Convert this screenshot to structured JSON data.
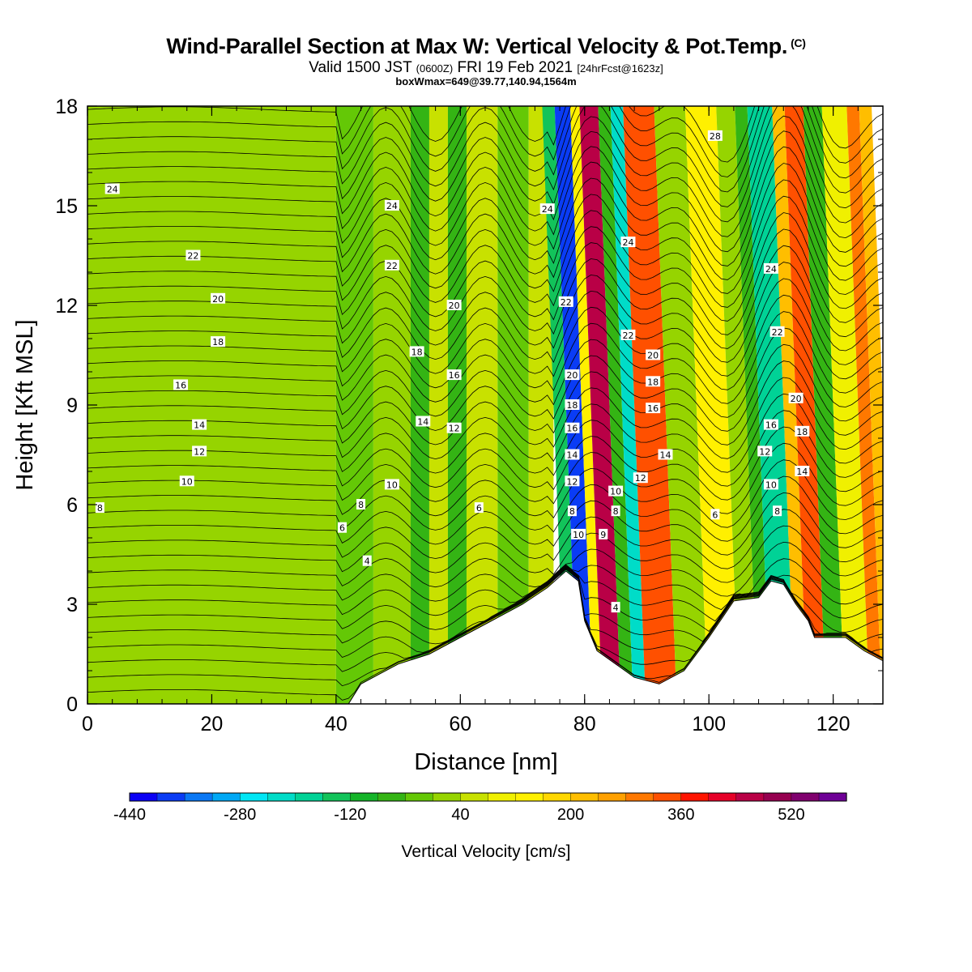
{
  "header": {
    "title": "Wind-Parallel Section at Max W: Vertical Velocity & Pot.Temp.",
    "copyright": "(C)",
    "valid_prefix": "Valid 1500 JST",
    "zulu": "(0600Z)",
    "valid_date": "FRI 19 Feb 2021",
    "forecast": "[24hrFcst@1623z]",
    "box_info": "boxWmax=649@39.77,140.94,1564m"
  },
  "chart_data": {
    "type": "contour",
    "xlabel": "Distance [nm]",
    "ylabel": "Height [Kft MSL]",
    "xlim": [
      0,
      128
    ],
    "ylim": [
      0,
      18
    ],
    "x_ticks": [
      0,
      20,
      40,
      60,
      80,
      100,
      120
    ],
    "y_ticks": [
      0,
      3,
      6,
      9,
      12,
      15,
      18
    ],
    "colorbar": {
      "title": "Vertical Velocity [cm/s]",
      "tick_labels": [
        "-440",
        "-280",
        "-120",
        "40",
        "200",
        "360",
        "520"
      ],
      "tick_values": [
        -440,
        -280,
        -120,
        40,
        200,
        360,
        520
      ],
      "min": -440,
      "max": 600,
      "step": 40,
      "colors": [
        "#0a00f5",
        "#0a3cf5",
        "#0a78f5",
        "#00a8f5",
        "#00e6f5",
        "#00dcc8",
        "#00d296",
        "#12c35a",
        "#14b428",
        "#34b414",
        "#64c806",
        "#96d400",
        "#c8e100",
        "#f0f000",
        "#fff000",
        "#ffd700",
        "#ffbe00",
        "#ffa000",
        "#ff7800",
        "#ff5000",
        "#ff1400",
        "#e60028",
        "#b90046",
        "#960050",
        "#80006e",
        "#6e0096"
      ]
    },
    "vertical_velocity_bands": [
      {
        "x_start": 0,
        "x_end": 40,
        "value": 0
      },
      {
        "x_start": 40,
        "x_end": 46,
        "value": -40
      },
      {
        "x_start": 46,
        "x_end": 52,
        "value": 0
      },
      {
        "x_start": 52,
        "x_end": 55,
        "value": -80
      },
      {
        "x_start": 55,
        "x_end": 58,
        "value": 40
      },
      {
        "x_start": 58,
        "x_end": 61,
        "value": -80
      },
      {
        "x_start": 61,
        "x_end": 66,
        "value": 40
      },
      {
        "x_start": 66,
        "x_end": 71,
        "value": -40
      },
      {
        "x_start": 71,
        "x_end": 75,
        "value": 40
      },
      {
        "x_start": 75,
        "x_end": 77,
        "value": -160
      },
      {
        "x_start": 77,
        "x_end": 79.5,
        "value": -400
      },
      {
        "x_start": 79.5,
        "x_end": 81,
        "value": 120
      },
      {
        "x_start": 81,
        "x_end": 84,
        "value": 440
      },
      {
        "x_start": 84,
        "x_end": 86,
        "value": -80
      },
      {
        "x_start": 86,
        "x_end": 88,
        "value": -240
      },
      {
        "x_start": 88,
        "x_end": 93,
        "value": 320
      },
      {
        "x_start": 93,
        "x_end": 98,
        "value": 0
      },
      {
        "x_start": 98,
        "x_end": 103,
        "value": 120
      },
      {
        "x_start": 103,
        "x_end": 106,
        "value": 0
      },
      {
        "x_start": 106,
        "x_end": 108,
        "value": -80
      },
      {
        "x_start": 108,
        "x_end": 112,
        "value": -200
      },
      {
        "x_start": 112,
        "x_end": 114,
        "value": 200
      },
      {
        "x_start": 114,
        "x_end": 117,
        "value": 320
      },
      {
        "x_start": 117,
        "x_end": 120,
        "value": -80
      },
      {
        "x_start": 120,
        "x_end": 124,
        "value": 80
      },
      {
        "x_start": 124,
        "x_end": 126,
        "value": 280
      },
      {
        "x_start": 126,
        "x_end": 128,
        "value": 200
      }
    ],
    "terrain_kft": [
      {
        "x": 0,
        "y": 0
      },
      {
        "x": 42,
        "y": 0
      },
      {
        "x": 44,
        "y": 0.6
      },
      {
        "x": 47,
        "y": 0.9
      },
      {
        "x": 50,
        "y": 1.2
      },
      {
        "x": 55,
        "y": 1.5
      },
      {
        "x": 60,
        "y": 2.0
      },
      {
        "x": 65,
        "y": 2.5
      },
      {
        "x": 70,
        "y": 3.0
      },
      {
        "x": 74,
        "y": 3.5
      },
      {
        "x": 77,
        "y": 4.0
      },
      {
        "x": 79,
        "y": 3.7
      },
      {
        "x": 80,
        "y": 2.5
      },
      {
        "x": 82,
        "y": 1.6
      },
      {
        "x": 85,
        "y": 1.2
      },
      {
        "x": 88,
        "y": 0.8
      },
      {
        "x": 92,
        "y": 0.6
      },
      {
        "x": 96,
        "y": 1.0
      },
      {
        "x": 100,
        "y": 2.0
      },
      {
        "x": 104,
        "y": 3.1
      },
      {
        "x": 108,
        "y": 3.2
      },
      {
        "x": 110,
        "y": 3.7
      },
      {
        "x": 112,
        "y": 3.6
      },
      {
        "x": 114,
        "y": 3.0
      },
      {
        "x": 116,
        "y": 2.5
      },
      {
        "x": 117,
        "y": 2.0
      },
      {
        "x": 122,
        "y": 2.0
      },
      {
        "x": 125,
        "y": 1.6
      },
      {
        "x": 128,
        "y": 1.3
      }
    ],
    "theta_levels": [
      4,
      6,
      8,
      10,
      12,
      14,
      16,
      18,
      20,
      22,
      24,
      26,
      28
    ],
    "theta_labels": [
      {
        "text": "24",
        "x": 4,
        "y": 15.5
      },
      {
        "text": "22",
        "x": 17,
        "y": 13.5
      },
      {
        "text": "20",
        "x": 21,
        "y": 12.2
      },
      {
        "text": "18",
        "x": 21,
        "y": 10.9
      },
      {
        "text": "16",
        "x": 15,
        "y": 9.6
      },
      {
        "text": "14",
        "x": 18,
        "y": 8.4
      },
      {
        "text": "12",
        "x": 18,
        "y": 7.6
      },
      {
        "text": "10",
        "x": 16,
        "y": 6.7
      },
      {
        "text": "8",
        "x": 2,
        "y": 5.9
      },
      {
        "text": "24",
        "x": 49,
        "y": 15.0
      },
      {
        "text": "22",
        "x": 49,
        "y": 13.2
      },
      {
        "text": "20",
        "x": 59,
        "y": 12.0
      },
      {
        "text": "18",
        "x": 53,
        "y": 10.6
      },
      {
        "text": "16",
        "x": 59,
        "y": 9.9
      },
      {
        "text": "14",
        "x": 54,
        "y": 8.5
      },
      {
        "text": "12",
        "x": 59,
        "y": 8.3
      },
      {
        "text": "10",
        "x": 49,
        "y": 6.6
      },
      {
        "text": "8",
        "x": 44,
        "y": 6.0
      },
      {
        "text": "6",
        "x": 41,
        "y": 5.3
      },
      {
        "text": "6",
        "x": 63,
        "y": 5.9
      },
      {
        "text": "4",
        "x": 45,
        "y": 4.3
      },
      {
        "text": "24",
        "x": 74,
        "y": 14.9
      },
      {
        "text": "22",
        "x": 77,
        "y": 12.1
      },
      {
        "text": "20",
        "x": 78,
        "y": 9.9
      },
      {
        "text": "18",
        "x": 78,
        "y": 9.0
      },
      {
        "text": "16",
        "x": 78,
        "y": 8.3
      },
      {
        "text": "14",
        "x": 78,
        "y": 7.5
      },
      {
        "text": "12",
        "x": 78,
        "y": 6.7
      },
      {
        "text": "8",
        "x": 78,
        "y": 5.8
      },
      {
        "text": "10",
        "x": 79,
        "y": 5.1
      },
      {
        "text": "24",
        "x": 87,
        "y": 13.9
      },
      {
        "text": "22",
        "x": 87,
        "y": 11.1
      },
      {
        "text": "20",
        "x": 91,
        "y": 10.5
      },
      {
        "text": "18",
        "x": 91,
        "y": 9.7
      },
      {
        "text": "16",
        "x": 91,
        "y": 8.9
      },
      {
        "text": "14",
        "x": 93,
        "y": 7.5
      },
      {
        "text": "12",
        "x": 89,
        "y": 6.8
      },
      {
        "text": "10",
        "x": 85,
        "y": 6.4
      },
      {
        "text": "8",
        "x": 85,
        "y": 5.8
      },
      {
        "text": "9",
        "x": 83,
        "y": 5.1
      },
      {
        "text": "4",
        "x": 85,
        "y": 2.9
      },
      {
        "text": "28",
        "x": 101,
        "y": 17.1
      },
      {
        "text": "24",
        "x": 110,
        "y": 13.1
      },
      {
        "text": "22",
        "x": 111,
        "y": 11.2
      },
      {
        "text": "20",
        "x": 114,
        "y": 9.2
      },
      {
        "text": "18",
        "x": 115,
        "y": 8.2
      },
      {
        "text": "16",
        "x": 110,
        "y": 8.4
      },
      {
        "text": "14",
        "x": 115,
        "y": 7.0
      },
      {
        "text": "12",
        "x": 109,
        "y": 7.6
      },
      {
        "text": "10",
        "x": 110,
        "y": 6.6
      },
      {
        "text": "8",
        "x": 111,
        "y": 5.8
      },
      {
        "text": "6",
        "x": 101,
        "y": 5.7
      }
    ]
  }
}
